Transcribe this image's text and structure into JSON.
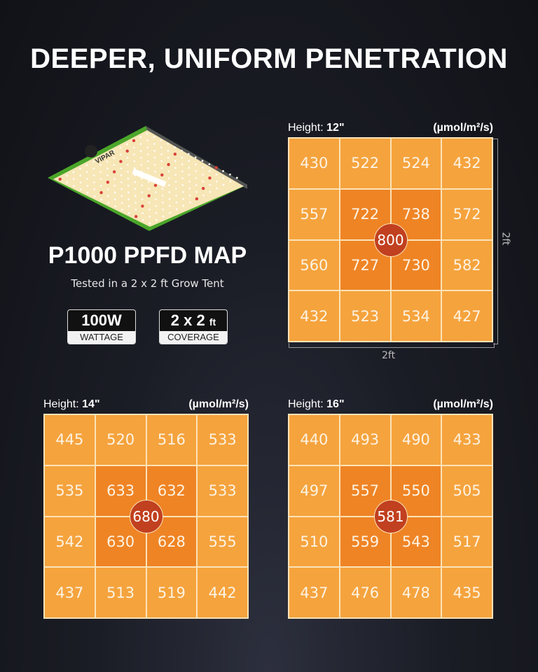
{
  "title": "DEEPER, UNIFORM PENETRATION",
  "product": {
    "logo_text": "VIPAR",
    "name": "P1000 PPFD MAP",
    "subtitle": "Tested in a 2 x 2 ft Grow Tent",
    "badges": [
      {
        "value": "100W",
        "unit": "",
        "label": "WATTAGE"
      },
      {
        "value": "2 x 2",
        "unit": "ft",
        "label": "COVERAGE"
      }
    ]
  },
  "colors": {
    "outer": "#f5a33d",
    "inner": "#ef8425",
    "peak": "#c1401f",
    "lamp_frame": "#4aa62a"
  },
  "chart_data": [
    {
      "type": "heatmap",
      "height_label": "Height:",
      "height_value": "12\"",
      "unit": "(µmol/m²/s)",
      "x_dim": "2ft",
      "y_dim": "2ft",
      "peak": 800,
      "values": [
        [
          430,
          522,
          524,
          432
        ],
        [
          557,
          722,
          738,
          572
        ],
        [
          560,
          727,
          730,
          582
        ],
        [
          432,
          523,
          534,
          427
        ]
      ]
    },
    {
      "type": "heatmap",
      "height_label": "Height:",
      "height_value": "14\"",
      "unit": "(µmol/m²/s)",
      "peak": 680,
      "values": [
        [
          445,
          520,
          516,
          533
        ],
        [
          535,
          633,
          632,
          533
        ],
        [
          542,
          630,
          628,
          555
        ],
        [
          437,
          513,
          519,
          442
        ]
      ]
    },
    {
      "type": "heatmap",
      "height_label": "Height:",
      "height_value": "16\"",
      "unit": "(µmol/m²/s)",
      "peak": 581,
      "values": [
        [
          440,
          493,
          490,
          433
        ],
        [
          497,
          557,
          550,
          505
        ],
        [
          510,
          559,
          543,
          517
        ],
        [
          437,
          476,
          478,
          435
        ]
      ]
    }
  ]
}
